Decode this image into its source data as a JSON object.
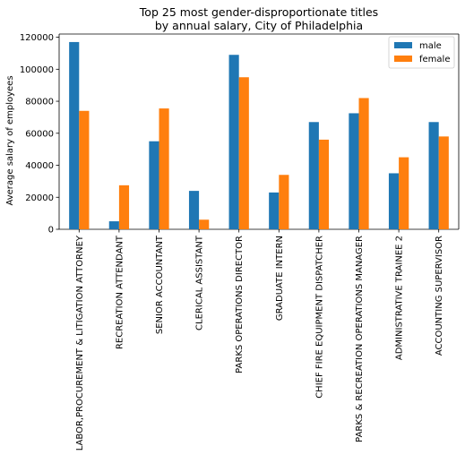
{
  "chart_data": {
    "type": "bar",
    "title": "Top 25 most gender-disproportionate titles\nby annual salary, City of Philadelphia",
    "xlabel": "",
    "ylabel": "Average salary of employees",
    "ylim": [
      0,
      122000
    ],
    "yticks": [
      0,
      20000,
      40000,
      60000,
      80000,
      100000,
      120000
    ],
    "ytick_labels": [
      "0",
      "20000",
      "40000",
      "60000",
      "80000",
      "100000",
      "120000"
    ],
    "categories": [
      "LABOR,PROCUREMENT & LITIGATION ATTORNEY",
      "RECREATION ATTENDANT",
      "SENIOR ACCOUNTANT",
      "CLERICAL ASSISTANT",
      "PARKS OPERATIONS DIRECTOR",
      "GRADUATE INTERN",
      "CHIEF FIRE EQUIPMENT DISPATCHER",
      "PARKS & RECREATION OPERATIONS MANAGER",
      "ADMINISTRATIVE TRAINEE 2",
      "ACCOUNTING SUPERVISOR"
    ],
    "series": [
      {
        "name": "male",
        "color": "#1f77b4",
        "values": [
          117000,
          5000,
          55000,
          24000,
          109000,
          23000,
          67000,
          72500,
          35000,
          67000
        ]
      },
      {
        "name": "female",
        "color": "#ff7f0e",
        "values": [
          74000,
          27500,
          75500,
          6000,
          95000,
          34000,
          56000,
          82000,
          45000,
          58000
        ]
      }
    ],
    "legend_position": "top-right",
    "grid": false
  }
}
